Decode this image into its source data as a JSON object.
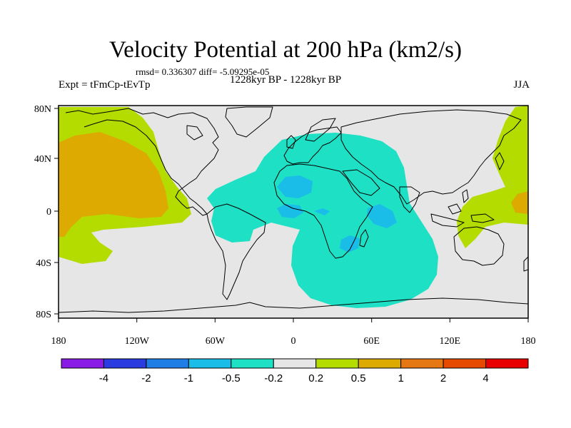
{
  "map": {
    "title": "Velocity Potential at 200 hPa (km2/s)",
    "stats": "rmsd= 0.336307 diff= -5.09295e-05",
    "experiment": "Expt = tFmCp-tEvTp",
    "period": "1228kyr BP - 1228kyr BP",
    "season": "JJA",
    "lat_labels": [
      "80N",
      "40N",
      "0",
      "40S",
      "80S"
    ],
    "lon_labels": [
      "180",
      "120W",
      "60W",
      "0",
      "60E",
      "120E",
      "180"
    ]
  },
  "colorbar": {
    "levels": [
      "-4",
      "-2",
      "-1",
      "-0.5",
      "-0.2",
      "0.2",
      "0.5",
      "1",
      "2",
      "4"
    ],
    "colors": [
      "#8a1be6",
      "#2a3ce0",
      "#1e7ee6",
      "#19bde8",
      "#1ee0c4",
      "#e6e6e6",
      "#b4dc00",
      "#dcaa00",
      "#e67814",
      "#e64a00",
      "#e80000"
    ]
  },
  "field_colors": {
    "ocean": "#e6e6e6",
    "negative_weak": "#1ee0c4",
    "negative_medium": "#19bde8",
    "positive_weak": "#b4dc00",
    "positive_medium": "#dcaa00",
    "coast": "#000000"
  }
}
